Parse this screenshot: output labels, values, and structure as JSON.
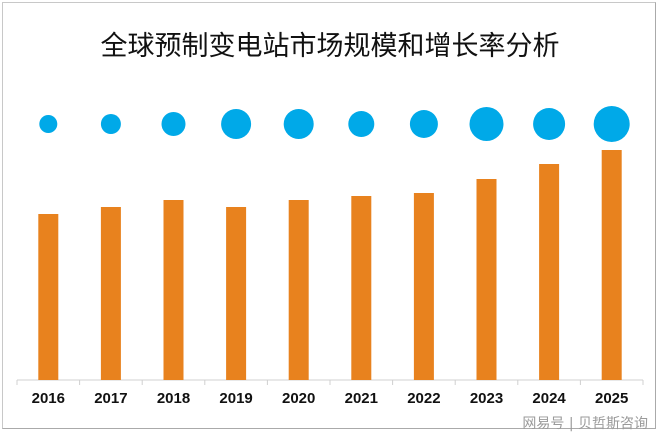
{
  "chart_data": {
    "type": "bar",
    "title": "全球预制变电站市场规模和增长率分析",
    "categories": [
      "2016",
      "2017",
      "2018",
      "2019",
      "2020",
      "2021",
      "2022",
      "2023",
      "2024",
      "2025"
    ],
    "series": [
      {
        "kind": "bar",
        "values": [
          166,
          173,
          180,
          173,
          180,
          184,
          187,
          201,
          216,
          230
        ],
        "color": "#E8821E"
      },
      {
        "kind": "bubble",
        "values": [
          18,
          20,
          24,
          30,
          30,
          26,
          28,
          34,
          32,
          36
        ],
        "color": "#00A9E8"
      }
    ],
    "xlabel": "",
    "ylabel": "",
    "ylim": [
      0,
      240
    ],
    "grid": false,
    "legend": "none"
  },
  "watermark": "网易号 | 贝哲斯咨询"
}
